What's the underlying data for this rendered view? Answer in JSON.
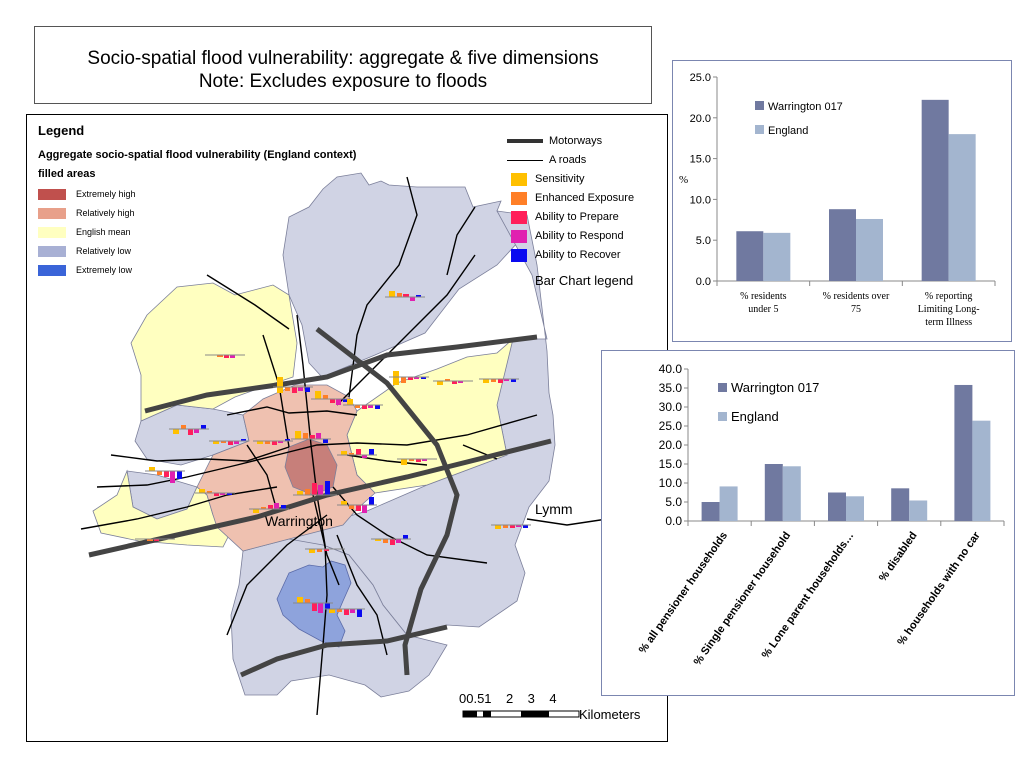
{
  "title": {
    "line1": "Socio-spatial flood vulnerability: aggregate & five dimensions",
    "line2": "Note: Excludes exposure to floods"
  },
  "legend": {
    "title": "Legend",
    "subtitle": "Aggregate socio-spatial flood vulnerability (England context)",
    "filled_areas_label": "filled areas",
    "fills": [
      {
        "label": "Extremely high",
        "color": "#c0504d"
      },
      {
        "label": "Relatively high",
        "color": "#e8a08a"
      },
      {
        "label": "English mean",
        "color": "#ffffc0"
      },
      {
        "label": "Relatively low",
        "color": "#a8b0d4"
      },
      {
        "label": "Extremely low",
        "color": "#3a64d8"
      }
    ],
    "lines": [
      {
        "label": "Motorways"
      },
      {
        "label": "A roads"
      }
    ],
    "bars": [
      {
        "label": "Sensitivity",
        "color": "#ffc000"
      },
      {
        "label": "Enhanced Exposure",
        "color": "#ff7f27"
      },
      {
        "label": "Ability to Prepare",
        "color": "#ff1f5a"
      },
      {
        "label": "Ability to Respond",
        "color": "#e020b0"
      },
      {
        "label": "Ability to Recover",
        "color": "#0a0af0"
      }
    ],
    "bar_chart_legend_label": "Bar Chart legend"
  },
  "places": {
    "warrington": "Warrington",
    "lymm": "Lymm"
  },
  "scale": {
    "numbers": "00.51    2    3    4",
    "unit": "Kilometers"
  },
  "chart_data": [
    {
      "type": "bar",
      "categories": [
        "% residents under 5",
        "% residents over 75",
        "% reporting Limiting Long-term Illness"
      ],
      "category_lines": [
        [
          "% residents",
          "under 5"
        ],
        [
          "% residents  over",
          "75"
        ],
        [
          "% reporting",
          "Limiting Long-",
          "term Illness"
        ]
      ],
      "series": [
        {
          "name": "Warrington 017",
          "values": [
            6.1,
            8.8,
            22.2
          ],
          "color": "#7079a0"
        },
        {
          "name": "England",
          "values": [
            5.9,
            7.6,
            18.0
          ],
          "color": "#a3b5cf"
        }
      ],
      "ylabel": "%",
      "ylim": [
        0,
        25
      ],
      "yticks": [
        "0.0",
        "5.0",
        "10.0",
        "15.0",
        "20.0",
        "25.0"
      ],
      "legend_position": "top-left"
    },
    {
      "type": "bar",
      "categories": [
        "% all pensioner households",
        "% Single pensioner household",
        "% Lone parent households…",
        "% disabled",
        "% households with no car"
      ],
      "series": [
        {
          "name": "Warrington 017",
          "values": [
            5.0,
            15.0,
            7.5,
            8.6,
            35.8
          ],
          "color": "#7079a0"
        },
        {
          "name": "England",
          "values": [
            9.1,
            14.4,
            6.5,
            5.4,
            26.4
          ],
          "color": "#a3b5cf"
        }
      ],
      "ylim": [
        0,
        40
      ],
      "yticks": [
        "0.0",
        "5.0",
        "10.0",
        "15.0",
        "20.0",
        "25.0",
        "30.0",
        "35.0",
        "40.0"
      ],
      "legend_position": "top-left"
    }
  ]
}
